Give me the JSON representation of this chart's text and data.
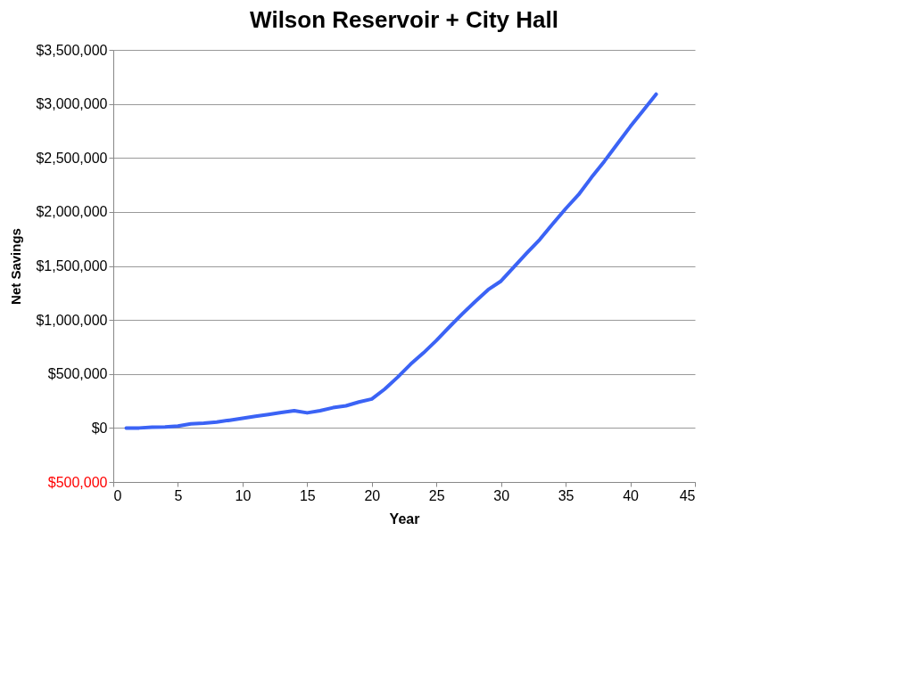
{
  "chart_data": {
    "type": "line",
    "title": "Wilson Reservoir + City Hall",
    "xlabel": "Year",
    "ylabel": "Net Savings",
    "x": [
      1,
      2,
      3,
      4,
      5,
      6,
      7,
      8,
      9,
      10,
      11,
      12,
      13,
      14,
      15,
      16,
      17,
      18,
      19,
      20,
      21,
      22,
      23,
      24,
      25,
      26,
      27,
      28,
      29,
      30,
      31,
      32,
      33,
      34,
      35,
      36,
      37,
      38,
      39,
      40,
      41,
      42
    ],
    "series": [
      {
        "color": "#3b63f5",
        "values": [
          0,
          0,
          8000,
          10000,
          18000,
          38000,
          45000,
          55000,
          72000,
          90000,
          108000,
          125000,
          143000,
          160000,
          140000,
          160000,
          188000,
          205000,
          240000,
          268000,
          360000,
          470000,
          590000,
          695000,
          810000,
          935000,
          1055000,
          1170000,
          1280000,
          1360000,
          1490000,
          1620000,
          1745000,
          1890000,
          2030000,
          2160000,
          2320000,
          2470000,
          2630000,
          2790000,
          2940000,
          3090000
        ]
      }
    ],
    "xlim": [
      0,
      45
    ],
    "xticks": [
      0,
      5,
      10,
      15,
      20,
      25,
      30,
      35,
      40,
      45
    ],
    "ylim": [
      -500000,
      3500000
    ],
    "yticks": [
      {
        "value": -500000,
        "label": "$500,000"
      },
      {
        "value": 0,
        "label": "$0"
      },
      {
        "value": 500000,
        "label": "$500,000"
      },
      {
        "value": 1000000,
        "label": "$1,000,000"
      },
      {
        "value": 1500000,
        "label": "$1,500,000"
      },
      {
        "value": 2000000,
        "label": "$2,000,000"
      },
      {
        "value": 2500000,
        "label": "$2,500,000"
      },
      {
        "value": 3000000,
        "label": "$3,000,000"
      },
      {
        "value": 3500000,
        "label": "$3,500,000"
      }
    ],
    "grid": "y",
    "marker": "none",
    "line_style": "solid"
  }
}
